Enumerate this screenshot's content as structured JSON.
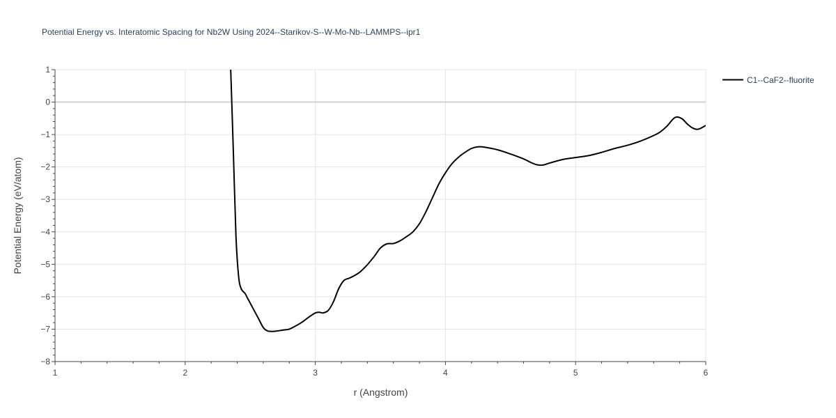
{
  "chart_data": {
    "type": "line",
    "title": "Potential Energy vs. Interatomic Spacing for Nb2W Using 2024--Starikov-S--W-Mo-Nb--LAMMPS--ipr1",
    "xlabel": "r (Angstrom)",
    "ylabel": "Potential Energy (eV/atom)",
    "xlim": [
      1,
      6
    ],
    "ylim": [
      -8,
      1
    ],
    "xticks": [
      1,
      2,
      3,
      4,
      5,
      6
    ],
    "yticks": [
      1,
      0,
      -1,
      -2,
      -3,
      -4,
      -5,
      -6,
      -7,
      -8
    ],
    "xtick_labels": [
      "1",
      "2",
      "3",
      "4",
      "5",
      "6"
    ],
    "ytick_labels": [
      "1",
      "0",
      "−1",
      "−2",
      "−3",
      "−4",
      "−5",
      "−6",
      "−7",
      "−8"
    ],
    "grid": true,
    "legend_position": "top-right",
    "line_color": "#000000",
    "series": [
      {
        "name": "C1--CaF2--fluorite",
        "x": [
          2.35,
          2.37,
          2.39,
          2.41,
          2.43,
          2.46,
          2.48,
          2.52,
          2.56,
          2.6,
          2.63,
          2.66,
          2.7,
          2.75,
          2.8,
          2.85,
          2.9,
          2.95,
          3.0,
          3.03,
          3.06,
          3.1,
          3.14,
          3.18,
          3.22,
          3.26,
          3.3,
          3.34,
          3.38,
          3.42,
          3.46,
          3.5,
          3.55,
          3.6,
          3.65,
          3.7,
          3.75,
          3.8,
          3.85,
          3.9,
          3.95,
          4.0,
          4.05,
          4.1,
          4.15,
          4.2,
          4.25,
          4.3,
          4.4,
          4.5,
          4.6,
          4.65,
          4.7,
          4.75,
          4.8,
          4.9,
          5.0,
          5.1,
          5.2,
          5.3,
          5.4,
          5.5,
          5.6,
          5.65,
          5.7,
          5.75,
          5.78,
          5.82,
          5.86,
          5.9,
          5.93,
          5.96,
          6.0
        ],
        "y": [
          1.0,
          -1.5,
          -4.1,
          -5.35,
          -5.75,
          -5.9,
          -6.05,
          -6.35,
          -6.65,
          -6.95,
          -7.05,
          -7.07,
          -7.06,
          -7.03,
          -7.0,
          -6.9,
          -6.78,
          -6.63,
          -6.5,
          -6.48,
          -6.5,
          -6.42,
          -6.15,
          -5.75,
          -5.5,
          -5.43,
          -5.35,
          -5.25,
          -5.1,
          -4.92,
          -4.72,
          -4.5,
          -4.37,
          -4.36,
          -4.28,
          -4.15,
          -4.0,
          -3.75,
          -3.38,
          -2.95,
          -2.52,
          -2.18,
          -1.9,
          -1.7,
          -1.55,
          -1.43,
          -1.38,
          -1.39,
          -1.47,
          -1.6,
          -1.75,
          -1.85,
          -1.93,
          -1.94,
          -1.88,
          -1.77,
          -1.71,
          -1.65,
          -1.55,
          -1.43,
          -1.33,
          -1.2,
          -1.03,
          -0.92,
          -0.75,
          -0.52,
          -0.46,
          -0.52,
          -0.68,
          -0.8,
          -0.84,
          -0.81,
          -0.72
        ]
      }
    ]
  }
}
